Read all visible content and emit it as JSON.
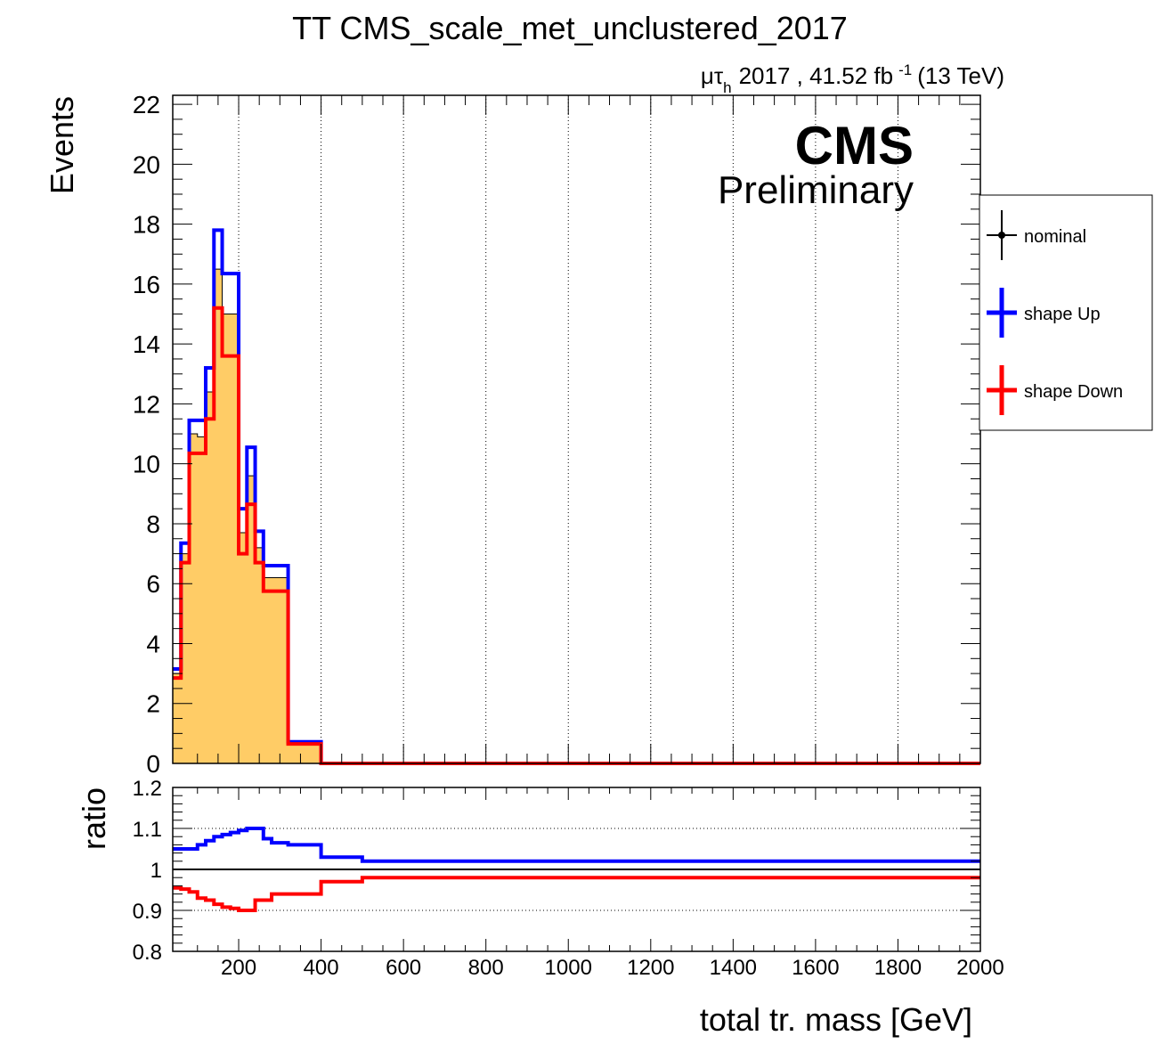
{
  "title": "TT CMS_scale_met_unclustered_2017",
  "lumi": {
    "channel_mu": "μ",
    "channel_tau": "τ",
    "channel_sub": "h",
    "text": "2017 , 41.52 fb",
    "superscript": "-1",
    "energy": "(13 TeV)"
  },
  "cms_label": "CMS",
  "cms_sublabel": "Preliminary",
  "legend": {
    "position": "right-outside",
    "entries": [
      {
        "label": "nominal",
        "color": "#000000"
      },
      {
        "label": "shape Up",
        "color": "#0000ff"
      },
      {
        "label": "shape Down",
        "color": "#ff0000"
      }
    ]
  },
  "colors": {
    "nominal_fill": "#ffcc66",
    "nominal_line": "#000000",
    "up": "#0000ff",
    "down": "#ff0000",
    "grid": "#000000"
  },
  "chart_data": [
    {
      "type": "histogram",
      "ylabel": "Events",
      "xlim": [
        40,
        2000
      ],
      "ylim": [
        0,
        22.3
      ],
      "grid": "vertical dotted",
      "xticks": [
        200,
        400,
        600,
        800,
        1000,
        1200,
        1400,
        1600,
        1800,
        2000
      ],
      "yticks": [
        0,
        2,
        4,
        6,
        8,
        10,
        12,
        14,
        16,
        18,
        20,
        22
      ],
      "bin_edges": [
        40,
        60,
        80,
        100,
        120,
        140,
        160,
        180,
        200,
        220,
        240,
        260,
        280,
        320,
        400,
        500,
        2000
      ],
      "series": [
        {
          "name": "nominal",
          "values": [
            3.0,
            7.0,
            11.0,
            10.9,
            12.4,
            16.5,
            15.0,
            15.0,
            7.7,
            9.6,
            7.2,
            6.2,
            6.2,
            0.68,
            0.0,
            0.0
          ]
        },
        {
          "name": "shape Up",
          "values": [
            3.15,
            7.35,
            11.45,
            11.45,
            13.2,
            17.8,
            16.35,
            16.35,
            8.5,
            10.55,
            7.75,
            6.6,
            6.6,
            0.72,
            0.0,
            0.0
          ]
        },
        {
          "name": "shape Down",
          "values": [
            2.85,
            6.7,
            10.35,
            10.35,
            11.5,
            15.2,
            13.6,
            13.6,
            7.0,
            8.65,
            6.7,
            5.75,
            5.75,
            0.65,
            0.0,
            0.0
          ]
        }
      ]
    },
    {
      "type": "line",
      "xlabel": "total tr. mass [GeV]",
      "ylabel": "ratio",
      "xlim": [
        40,
        2000
      ],
      "ylim": [
        0.8,
        1.2
      ],
      "grid": "horizontal dotted",
      "xticks": [
        200,
        400,
        600,
        800,
        1000,
        1200,
        1400,
        1600,
        1800,
        2000
      ],
      "yticks": [
        0.8,
        0.9,
        1,
        1.1,
        1.2
      ],
      "ytick_labels": [
        "0.8",
        "0.9",
        "1",
        "1.1",
        "1.2"
      ],
      "bin_edges": [
        40,
        60,
        80,
        100,
        120,
        140,
        160,
        180,
        200,
        220,
        240,
        260,
        280,
        320,
        400,
        500,
        2000
      ],
      "series": [
        {
          "name": "shape Up",
          "values": [
            1.05,
            1.05,
            1.05,
            1.06,
            1.07,
            1.08,
            1.085,
            1.09,
            1.095,
            1.1,
            1.1,
            1.075,
            1.065,
            1.06,
            1.03,
            1.02
          ]
        },
        {
          "name": "shape Down",
          "values": [
            0.955,
            0.952,
            0.945,
            0.93,
            0.925,
            0.915,
            0.908,
            0.905,
            0.9,
            0.9,
            0.925,
            0.925,
            0.94,
            0.94,
            0.97,
            0.98
          ]
        },
        {
          "name": "nominal",
          "values": [
            1,
            1,
            1,
            1,
            1,
            1,
            1,
            1,
            1,
            1,
            1,
            1,
            1,
            1,
            1,
            1
          ]
        }
      ]
    }
  ]
}
